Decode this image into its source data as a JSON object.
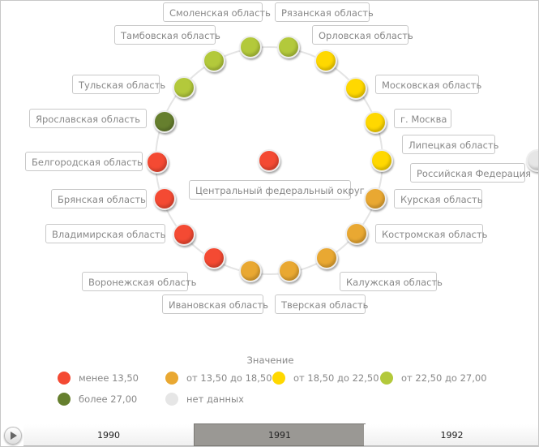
{
  "center": {
    "label": "Центральный федеральный округ",
    "color": "#f44a33"
  },
  "regions": [
    {
      "label": "Смоленская область",
      "color": "#b3c93b"
    },
    {
      "label": "Рязанская область",
      "color": "#b3c93b"
    },
    {
      "label": "Орловская область",
      "color": "#ffd800"
    },
    {
      "label": "Московская область",
      "color": "#ffd800"
    },
    {
      "label": "г. Москва",
      "color": "#ffd800"
    },
    {
      "label": "Липецкая область",
      "color": "#ffd800"
    },
    {
      "label": "Курская область",
      "color": "#e9a832"
    },
    {
      "label": "Костромская область",
      "color": "#e9a832"
    },
    {
      "label": "Калужская область",
      "color": "#e9a832"
    },
    {
      "label": "Тверская область",
      "color": "#e9a832"
    },
    {
      "label": "Ивановская область",
      "color": "#e9a832"
    },
    {
      "label": "Воронежская область",
      "color": "#f44a33"
    },
    {
      "label": "Владимирская область",
      "color": "#f44a33"
    },
    {
      "label": "Брянская область",
      "color": "#f44a33"
    },
    {
      "label": "Белгородская область",
      "color": "#f44a33"
    },
    {
      "label": "Ярославская область",
      "color": "#667f2e"
    },
    {
      "label": "Тульская область",
      "color": "#b3c93b"
    },
    {
      "label": "Тамбовская область",
      "color": "#b3c93b"
    }
  ],
  "outside": {
    "label": "Российская Федерация",
    "color": "#e6e6e6"
  },
  "legend": {
    "title": "Значение",
    "items": [
      {
        "label": "менее 13,50",
        "color": "#f44a33"
      },
      {
        "label": "от 13,50 до 18,50",
        "color": "#e9a832"
      },
      {
        "label": "от 18,50 до 22,50",
        "color": "#ffd800"
      },
      {
        "label": "от 22,50 до 27,00",
        "color": "#b3c93b"
      },
      {
        "label": "более 27,00",
        "color": "#667f2e"
      },
      {
        "label": "нет данных",
        "color": "#e6e6e6"
      }
    ]
  },
  "timeline": {
    "play_icon": "play-icon",
    "years": [
      "1990",
      "1991",
      "1992"
    ],
    "selected": "1991"
  }
}
